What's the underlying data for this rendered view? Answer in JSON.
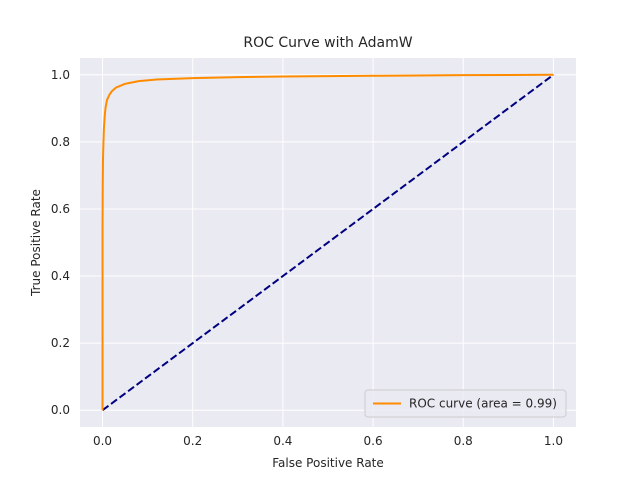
{
  "chart_data": {
    "type": "line",
    "title": "ROC Curve with AdamW",
    "xlabel": "False Positive Rate",
    "ylabel": "True Positive Rate",
    "xlim": [
      -0.05,
      1.05
    ],
    "ylim": [
      -0.05,
      1.05
    ],
    "xticks": [
      0.0,
      0.2,
      0.4,
      0.6,
      0.8,
      1.0
    ],
    "yticks": [
      0.0,
      0.2,
      0.4,
      0.6,
      0.8,
      1.0
    ],
    "xtick_labels": [
      "0.0",
      "0.2",
      "0.4",
      "0.6",
      "0.8",
      "1.0"
    ],
    "ytick_labels": [
      "0.0",
      "0.2",
      "0.4",
      "0.6",
      "0.8",
      "1.0"
    ],
    "grid": true,
    "legend_position": "lower-right",
    "series": [
      {
        "name": "ROC curve (area = 0.99)",
        "color": "#ff8c00",
        "style": "solid",
        "x": [
          0.0,
          0.0,
          0.0005,
          0.001,
          0.002,
          0.003,
          0.005,
          0.007,
          0.01,
          0.015,
          0.02,
          0.03,
          0.05,
          0.08,
          0.12,
          0.2,
          0.3,
          0.4,
          0.5,
          0.6,
          0.7,
          0.8,
          0.9,
          1.0
        ],
        "y": [
          0.0,
          0.55,
          0.68,
          0.75,
          0.8,
          0.84,
          0.88,
          0.905,
          0.925,
          0.94,
          0.95,
          0.962,
          0.973,
          0.981,
          0.986,
          0.99,
          0.993,
          0.995,
          0.996,
          0.997,
          0.998,
          0.999,
          0.9995,
          1.0
        ]
      },
      {
        "name": "",
        "color": "#000080",
        "style": "dashed",
        "x": [
          0.0,
          1.0
        ],
        "y": [
          0.0,
          1.0
        ]
      }
    ],
    "colors": {
      "background": "#eaeaf2",
      "grid": "#ffffff",
      "text": "#262626"
    }
  }
}
